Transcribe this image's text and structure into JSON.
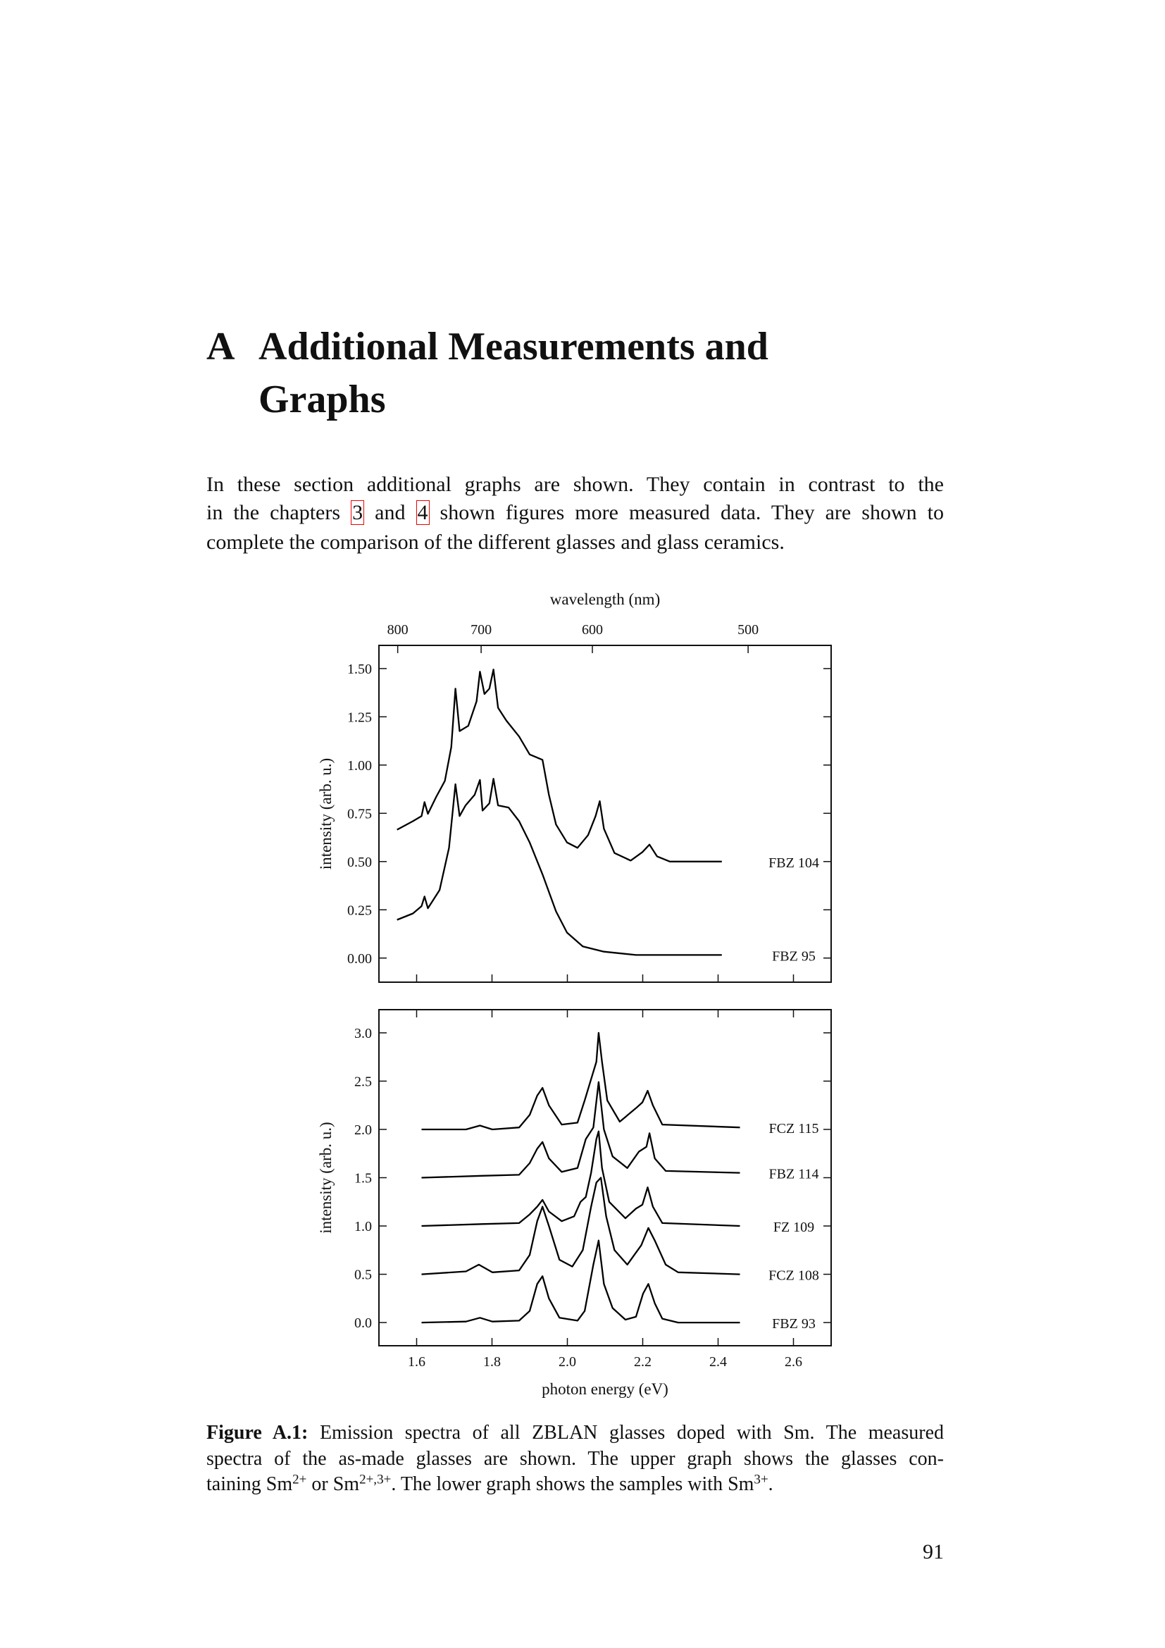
{
  "heading": {
    "number": "A",
    "title_lines": [
      "Additional Measurements and",
      "Graphs"
    ]
  },
  "paragraph": {
    "line1": "In these section additional graphs are shown. They contain in contrast to the",
    "line2": [
      "in the chapters",
      "3",
      "and",
      "4",
      "shown figures more measured data. They are shown to"
    ],
    "line3": "complete the comparison of the different glasses and glass ceramics."
  },
  "chart_data": [
    {
      "type": "line",
      "x2label": "wavelength (nm)",
      "x2ticks": [
        800,
        700,
        600,
        500
      ],
      "x2scale": "wavelength",
      "ylabel": "intensity (arb. u.)",
      "xlim": [
        1.5,
        2.7
      ],
      "ylim": [
        -0.125,
        1.62
      ],
      "xticks": [
        1.6,
        1.8,
        2.0,
        2.2,
        2.4,
        2.6
      ],
      "show_xtick_labels": false,
      "yticks": [
        {
          "value": 0,
          "label": "0.00"
        },
        0.25,
        {
          "value": 0.5,
          "label": "0.50"
        },
        0.75,
        {
          "value": 1,
          "label": "1.00"
        },
        1.25,
        {
          "value": 1.5,
          "label": "1.50"
        }
      ],
      "series": [
        {
          "name": "FBZ 104",
          "color": "#000000",
          "x": [
            1.548,
            1.59,
            1.613,
            1.621,
            1.63,
            1.652,
            1.675,
            1.692,
            1.703,
            1.714,
            1.737,
            1.759,
            1.768,
            1.78,
            1.793,
            1.804,
            1.816,
            1.838,
            1.872,
            1.9,
            1.934,
            1.951,
            1.97,
            1.999,
            2.027,
            2.055,
            2.075,
            2.086,
            2.097,
            2.125,
            2.168,
            2.199,
            2.218,
            2.238,
            2.272,
            2.41
          ],
          "values": [
            0.665,
            0.709,
            0.736,
            0.808,
            0.747,
            0.835,
            0.918,
            1.093,
            1.396,
            1.176,
            1.203,
            1.33,
            1.484,
            1.368,
            1.396,
            1.495,
            1.297,
            1.231,
            1.148,
            1.055,
            1.027,
            0.846,
            0.692,
            0.599,
            0.571,
            0.637,
            0.736,
            0.813,
            0.67,
            0.544,
            0.505,
            0.549,
            0.588,
            0.527,
            0.5,
            0.5
          ]
        },
        {
          "name": "FBZ 95",
          "color": "#000000",
          "x": [
            1.548,
            1.59,
            1.613,
            1.621,
            1.63,
            1.661,
            1.686,
            1.703,
            1.714,
            1.73,
            1.754,
            1.768,
            1.775,
            1.793,
            1.804,
            1.816,
            1.844,
            1.872,
            1.9,
            1.934,
            1.97,
            1.999,
            2.041,
            2.097,
            2.182,
            2.41
          ],
          "values": [
            0.198,
            0.231,
            0.269,
            0.319,
            0.258,
            0.352,
            0.571,
            0.901,
            0.736,
            0.791,
            0.846,
            0.923,
            0.764,
            0.802,
            0.929,
            0.791,
            0.78,
            0.709,
            0.599,
            0.434,
            0.242,
            0.132,
            0.06,
            0.033,
            0.016,
            0.016
          ]
        }
      ]
    },
    {
      "type": "line",
      "xlabel": "photon energy (eV)",
      "ylabel": "intensity (arb. u.)",
      "xlim": [
        1.5,
        2.7
      ],
      "ylim": [
        -0.24,
        3.24
      ],
      "xticks": [
        1.6,
        1.8,
        {
          "value": 2,
          "label": "2.0"
        },
        2.2,
        2.4,
        2.6
      ],
      "show_xtick_labels": true,
      "yticks": [
        {
          "value": 0,
          "label": "0.0"
        },
        0.5,
        {
          "value": 1,
          "label": "1.0"
        },
        1.5,
        {
          "value": 2,
          "label": "2.0"
        },
        2.5,
        {
          "value": 3,
          "label": "3.0"
        }
      ],
      "series": [
        {
          "name": "FCZ 115",
          "color": "#000000",
          "x": [
            1.613,
            1.731,
            1.768,
            1.801,
            1.872,
            1.9,
            1.92,
            1.934,
            1.951,
            1.985,
            2.027,
            2.046,
            2.063,
            2.077,
            2.083,
            2.092,
            2.106,
            2.139,
            2.182,
            2.199,
            2.213,
            2.227,
            2.252,
            2.458
          ],
          "values": [
            2.0,
            2.0,
            2.04,
            2.0,
            2.02,
            2.15,
            2.35,
            2.43,
            2.25,
            2.05,
            2.07,
            2.3,
            2.52,
            2.7,
            3.0,
            2.7,
            2.3,
            2.08,
            2.22,
            2.28,
            2.4,
            2.25,
            2.05,
            2.02
          ]
        },
        {
          "name": "FBZ 114",
          "color": "#000000",
          "x": [
            1.613,
            1.773,
            1.872,
            1.9,
            1.92,
            1.934,
            1.951,
            1.985,
            2.027,
            2.049,
            2.069,
            2.083,
            2.097,
            2.12,
            2.159,
            2.19,
            2.21,
            2.218,
            2.232,
            2.261,
            2.458
          ],
          "values": [
            1.5,
            1.52,
            1.53,
            1.65,
            1.8,
            1.87,
            1.7,
            1.56,
            1.6,
            1.9,
            2.02,
            2.49,
            2.0,
            1.72,
            1.6,
            1.77,
            1.82,
            1.96,
            1.7,
            1.57,
            1.55
          ]
        },
        {
          "name": "FZ 109",
          "color": "#000000",
          "x": [
            1.613,
            1.773,
            1.872,
            1.9,
            1.92,
            1.934,
            1.951,
            1.985,
            2.018,
            2.035,
            2.049,
            2.063,
            2.077,
            2.083,
            2.092,
            2.111,
            2.154,
            2.182,
            2.199,
            2.213,
            2.227,
            2.252,
            2.458
          ],
          "values": [
            1.0,
            1.02,
            1.03,
            1.12,
            1.2,
            1.27,
            1.15,
            1.05,
            1.1,
            1.25,
            1.3,
            1.55,
            1.9,
            1.98,
            1.6,
            1.25,
            1.08,
            1.18,
            1.22,
            1.4,
            1.2,
            1.03,
            1.0
          ]
        },
        {
          "name": "FCZ 108",
          "color": "#000000",
          "x": [
            1.613,
            1.731,
            1.765,
            1.801,
            1.872,
            1.9,
            1.92,
            1.934,
            1.951,
            1.979,
            2.013,
            2.041,
            2.063,
            2.077,
            2.089,
            2.103,
            2.125,
            2.159,
            2.196,
            2.215,
            2.232,
            2.261,
            2.294,
            2.458
          ],
          "values": [
            0.5,
            0.53,
            0.6,
            0.52,
            0.54,
            0.7,
            1.05,
            1.2,
            1.0,
            0.65,
            0.58,
            0.75,
            1.2,
            1.45,
            1.5,
            1.1,
            0.75,
            0.6,
            0.8,
            0.98,
            0.85,
            0.6,
            0.52,
            0.5
          ]
        },
        {
          "name": "FBZ 93",
          "color": "#000000",
          "x": [
            1.613,
            1.731,
            1.768,
            1.801,
            1.872,
            1.9,
            1.92,
            1.934,
            1.951,
            1.979,
            2.027,
            2.046,
            2.069,
            2.083,
            2.097,
            2.12,
            2.154,
            2.182,
            2.201,
            2.215,
            2.232,
            2.252,
            2.294,
            2.458
          ],
          "values": [
            0.0,
            0.01,
            0.05,
            0.01,
            0.02,
            0.12,
            0.4,
            0.48,
            0.25,
            0.05,
            0.02,
            0.12,
            0.6,
            0.85,
            0.4,
            0.15,
            0.03,
            0.06,
            0.3,
            0.4,
            0.2,
            0.04,
            0.0,
            0.0
          ]
        }
      ]
    }
  ],
  "caption": {
    "label": "Figure A.1:",
    "line1": "Emission spectra of all ZBLAN glasses doped with Sm. The measured",
    "line2": "spectra of the as-made glasses are shown. The upper graph shows the glasses con-",
    "line3": [
      "taining Sm",
      "2+",
      "or Sm",
      "2+,3+",
      ". The lower graph shows the samples with Sm",
      "3+",
      "."
    ]
  },
  "page_number": "91"
}
